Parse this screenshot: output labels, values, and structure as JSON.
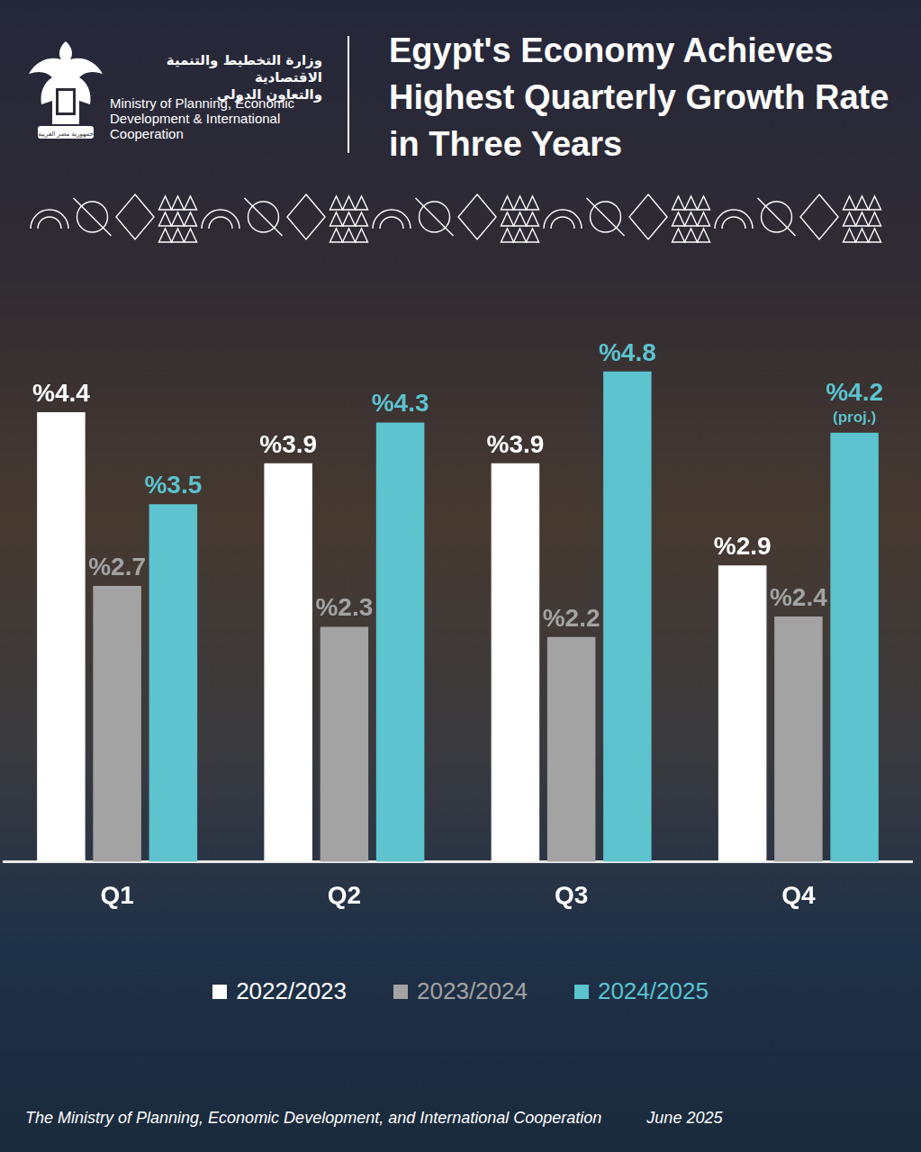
{
  "header": {
    "emblem_text": "جمهورية مصر العربية",
    "ministry_ar": [
      "وزارة التخطيط والتنمية الاقتصادية",
      "والتعاون الدولي"
    ],
    "ministry_en": "Ministry of Planning, Economic Development & International Cooperation"
  },
  "chart_data": {
    "type": "bar",
    "title": "Egypt's Economy Achieves Highest Quarterly Growth Rate in Three Years",
    "categories": [
      "Q1",
      "Q2",
      "Q3",
      "Q4"
    ],
    "series": [
      {
        "name": "2022/2023",
        "color": "#ffffff",
        "values": [
          4.4,
          3.9,
          3.9,
          2.9
        ],
        "value_labels": [
          "%4.4",
          "%3.9",
          "%3.9",
          "%2.9"
        ]
      },
      {
        "name": "2023/2024",
        "color": "#a3a3a3",
        "values": [
          2.7,
          2.3,
          2.2,
          2.4
        ],
        "value_labels": [
          "%2.7",
          "%2.3",
          "%2.2",
          "%2.4"
        ]
      },
      {
        "name": "2024/2025",
        "color": "#5cc3cf",
        "values": [
          3.5,
          4.3,
          4.8,
          4.2
        ],
        "value_labels": [
          "%3.5",
          "%4.3",
          "%4.8",
          "%4.2"
        ]
      }
    ],
    "annotations": [
      {
        "series": "2024/2025",
        "category": "Q4",
        "text": "(proj.)"
      }
    ],
    "ylim": [
      0,
      5
    ],
    "grid": false,
    "legend": "bottom",
    "data_labels": true,
    "tick_labels": "x"
  },
  "footer": {
    "source": "The Ministry of Planning, Economic Development, and International Cooperation",
    "date": "June 2025"
  }
}
